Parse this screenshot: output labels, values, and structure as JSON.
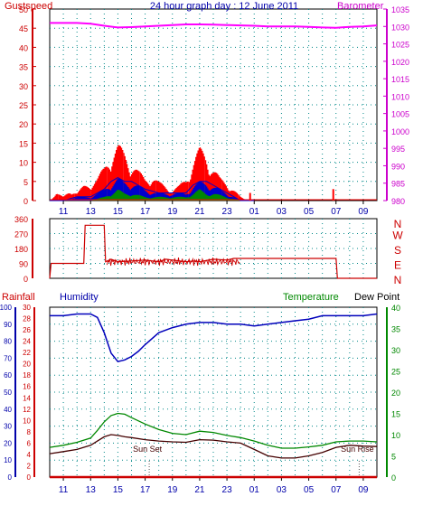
{
  "colors": {
    "gust": "#ff0000",
    "wind_avg": "#0000cc",
    "wind_min": "#008800",
    "barometer": "#ff00ff",
    "direction": "#cc0000",
    "humidity": "#0000bb",
    "temperature": "#008800",
    "dewpoint": "#440000",
    "rainfall": "#cc0000",
    "grid": "#008888",
    "frame": "#000000",
    "axis_red": "#cc0000",
    "axis_blue": "#0000aa",
    "axis_green": "#008800",
    "axis_magenta": "#cc00cc"
  },
  "chart_data": [
    {
      "type": "line",
      "title": "24 hour graph day : 12 June 2011",
      "x_tick_labels": [
        "11",
        "13",
        "15",
        "17",
        "19",
        "21",
        "23",
        "01",
        "03",
        "05",
        "07",
        "09"
      ],
      "x_range_hours": [
        10,
        34
      ],
      "left_axis": {
        "label": "Gustspeed",
        "range": [
          0,
          50
        ],
        "ticks": [
          "0",
          "5",
          "10",
          "15",
          "20",
          "25",
          "30",
          "35",
          "40",
          "45",
          "50"
        ]
      },
      "right_axis": {
        "label": "Barometer",
        "range": [
          980,
          1035
        ],
        "ticks": [
          "980",
          "985",
          "990",
          "995",
          "1000",
          "1005",
          "1010",
          "1015",
          "1020",
          "1025",
          "1030",
          "1035"
        ]
      },
      "series": [
        {
          "name": "Gustspeed",
          "axis": "left",
          "x": [
            10.0,
            10.5,
            11.0,
            11.5,
            12.0,
            12.5,
            13.0,
            13.5,
            14.0,
            14.5,
            15.0,
            15.5,
            16.0,
            16.5,
            17.0,
            17.5,
            18.0,
            18.5,
            19.0,
            19.5,
            20.0,
            20.5,
            21.0,
            21.5,
            22.0,
            22.5,
            23.0,
            23.5,
            24.0,
            24.5,
            25.0
          ],
          "y": [
            0,
            2,
            1,
            3,
            2,
            4,
            5,
            6,
            9,
            14,
            15,
            13,
            11,
            8,
            6,
            7,
            5,
            4,
            3,
            4,
            6,
            11,
            14,
            13,
            9,
            6,
            5,
            3,
            1,
            0,
            0
          ]
        },
        {
          "name": "Average wind",
          "axis": "left",
          "x": [
            10.0,
            11.0,
            12.0,
            13.0,
            13.5,
            14.0,
            14.5,
            15.0,
            15.5,
            16.0,
            16.5,
            17.0,
            18.0,
            19.0,
            20.0,
            20.5,
            21.0,
            21.5,
            22.0,
            23.0,
            24.0,
            25.0
          ],
          "y": [
            0,
            0,
            1,
            1,
            2,
            3,
            5,
            6,
            5,
            5,
            4,
            3,
            2,
            2,
            2,
            4,
            5,
            5,
            4,
            2,
            0,
            0
          ]
        },
        {
          "name": "Minimum wind",
          "axis": "left",
          "x": [
            10.0,
            13.0,
            14.0,
            14.5,
            15.0,
            15.5,
            16.0,
            17.0,
            18.0,
            20.0,
            20.5,
            21.0,
            21.5,
            22.0,
            23.0,
            24.0
          ],
          "y": [
            0,
            0,
            1,
            2,
            3,
            2,
            2,
            1,
            1,
            1,
            2,
            3,
            2,
            2,
            1,
            0
          ]
        },
        {
          "name": "Barometer",
          "axis": "right",
          "x": [
            10.0,
            11.0,
            12.0,
            13.0,
            14.0,
            15.0,
            16.0,
            17.0,
            18.0,
            19.0,
            20.0,
            21.0,
            22.0,
            23.0,
            24.0,
            25.0,
            26.0,
            27.0,
            28.0,
            29.0,
            30.0,
            31.0,
            32.0,
            33.0,
            34.0
          ],
          "y": [
            1031.0,
            1031.0,
            1031.0,
            1030.8,
            1030.2,
            1029.7,
            1029.8,
            1030.0,
            1030.2,
            1030.4,
            1030.6,
            1030.6,
            1030.5,
            1030.4,
            1030.3,
            1030.2,
            1030.0,
            1030.0,
            1030.0,
            1029.9,
            1029.7,
            1029.6,
            1029.9,
            1030.0,
            1030.3
          ]
        }
      ],
      "spikes": [
        {
          "x": 24.7,
          "y": 2
        },
        {
          "x": 30.8,
          "y": 3
        }
      ]
    },
    {
      "type": "line",
      "x_range_hours": [
        10,
        34
      ],
      "left_axis": {
        "range": [
          0,
          360
        ],
        "ticks": [
          "0",
          "90",
          "180",
          "270",
          "360"
        ]
      },
      "right_axis": {
        "labels": [
          "N",
          "W",
          "S",
          "E",
          "N"
        ]
      },
      "series": [
        {
          "name": "Wind direction",
          "x": [
            10.0,
            10.1,
            11.0,
            12.0,
            12.5,
            12.6,
            14.0,
            14.1,
            14.5,
            15.0,
            16.0,
            17.0,
            18.0,
            18.5,
            19.0,
            20.0,
            20.5,
            21.0,
            22.0,
            23.0,
            23.5,
            24.0,
            31.0,
            31.1,
            34.0
          ],
          "y": [
            0,
            90,
            90,
            90,
            90,
            320,
            320,
            100,
            115,
            100,
            105,
            110,
            100,
            115,
            110,
            100,
            105,
            100,
            115,
            110,
            120,
            120,
            120,
            0,
            0
          ]
        }
      ]
    },
    {
      "type": "line",
      "x_range_hours": [
        10,
        34
      ],
      "axes_labels": {
        "rainfall": "Rainfall",
        "humidity": "Humidity",
        "temperature": "Temperature",
        "dewpoint": "Dew Point"
      },
      "humidity_axis": {
        "range": [
          0,
          100
        ],
        "ticks": [
          "0",
          "10",
          "20",
          "30",
          "40",
          "50",
          "60",
          "70",
          "80",
          "90",
          "100"
        ]
      },
      "rain_axis": {
        "range": [
          0,
          30
        ],
        "ticks": [
          "0",
          "2",
          "4",
          "6",
          "8",
          "10",
          "12",
          "14",
          "16",
          "18",
          "20",
          "22",
          "24",
          "26",
          "28",
          "30"
        ]
      },
      "temp_axis": {
        "range": [
          0,
          40
        ],
        "ticks": [
          "0",
          "5",
          "10",
          "15",
          "20",
          "25",
          "30",
          "35",
          "40"
        ]
      },
      "annotations": [
        {
          "text": "Sun Set",
          "x": 17.3
        },
        {
          "text": "Sun Rise",
          "x": 32.7
        }
      ],
      "series": [
        {
          "name": "Humidity",
          "axis": "humidity",
          "x": [
            10.0,
            11.0,
            12.0,
            13.0,
            13.5,
            14.0,
            14.5,
            15.0,
            15.5,
            16.0,
            16.5,
            17.0,
            18.0,
            19.0,
            20.0,
            21.0,
            22.0,
            23.0,
            24.0,
            25.0,
            26.0,
            27.0,
            28.0,
            29.0,
            30.0,
            31.0,
            32.0,
            33.0,
            34.0
          ],
          "y": [
            95,
            95,
            96,
            96,
            94,
            85,
            73,
            68,
            69,
            71,
            74,
            78,
            85,
            88,
            90,
            91,
            91,
            90,
            90,
            89,
            90,
            91,
            92,
            93,
            95,
            95,
            95,
            95,
            96
          ]
        },
        {
          "name": "Temperature",
          "axis": "temp",
          "x": [
            10.0,
            11.0,
            12.0,
            13.0,
            13.5,
            14.0,
            14.5,
            15.0,
            15.5,
            16.0,
            17.0,
            18.0,
            19.0,
            20.0,
            21.0,
            22.0,
            23.0,
            24.0,
            25.0,
            26.0,
            27.0,
            28.0,
            29.0,
            30.0,
            31.0,
            32.0,
            33.0,
            34.0
          ],
          "y": [
            7,
            7.5,
            8.2,
            9.2,
            11,
            13,
            14.5,
            15,
            14.8,
            14,
            12.5,
            11.2,
            10.3,
            10,
            10.8,
            10.5,
            9.8,
            9.3,
            8.5,
            7.5,
            6.8,
            6.8,
            7.1,
            7.5,
            8.3,
            8.5,
            8.5,
            8.3
          ]
        },
        {
          "name": "Dew Point",
          "axis": "temp",
          "x": [
            10.0,
            11.0,
            12.0,
            13.0,
            13.5,
            14.0,
            14.5,
            15.0,
            15.5,
            16.0,
            17.0,
            18.0,
            19.0,
            20.0,
            21.0,
            22.0,
            23.0,
            24.0,
            25.0,
            26.0,
            27.0,
            28.0,
            29.0,
            30.0,
            31.0,
            32.0,
            33.0,
            34.0
          ],
          "y": [
            5.5,
            6,
            6.5,
            7.5,
            8.5,
            9.5,
            10,
            9.8,
            9.5,
            9.3,
            8.8,
            8.5,
            8.3,
            8.2,
            8.8,
            8.7,
            8.3,
            8,
            6.5,
            5,
            4.5,
            4.5,
            5,
            5.8,
            7,
            7.5,
            7.3,
            7.2
          ]
        },
        {
          "name": "Rainfall",
          "axis": "rain",
          "x": [
            10.0,
            34.0
          ],
          "y": [
            0,
            0
          ]
        }
      ]
    }
  ]
}
